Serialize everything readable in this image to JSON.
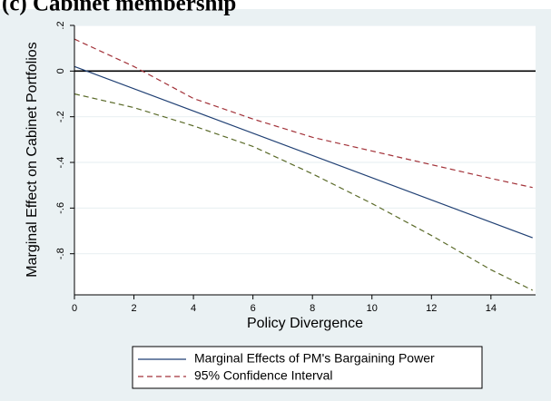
{
  "chart_data": {
    "type": "line",
    "title": "(c) Cabinet membership",
    "xlabel": "Policy Divergence",
    "ylabel": "Marginal Effect on Cabinet Portfolios",
    "xlim": [
      0,
      15.5
    ],
    "ylim": [
      -0.98,
      0.2
    ],
    "x_ticks": [
      0,
      2,
      4,
      6,
      8,
      10,
      12,
      14
    ],
    "x_tick_labels": [
      "0",
      "2",
      "4",
      "6",
      "8",
      "10",
      "12",
      "14"
    ],
    "y_ticks": [
      0.2,
      0,
      -0.2,
      -0.4,
      -0.6,
      -0.8
    ],
    "y_tick_labels": [
      ".2",
      "0",
      "-.2",
      "-.4",
      "-.6",
      "-.8"
    ],
    "reference_line_y": 0,
    "grid": "horizontal",
    "legend_position": "bottom",
    "series": [
      {
        "name": "Marginal Effects of PM's Bargaining Power",
        "color": "#1f3f73",
        "dash": "solid",
        "x": [
          0,
          15.4
        ],
        "y": [
          0.02,
          -0.73
        ]
      },
      {
        "name": "95% Confidence Interval",
        "color": "#a3333a",
        "dash": "dashed",
        "x": [
          0,
          2,
          4,
          6,
          8,
          10,
          12,
          14,
          15.4
        ],
        "y": [
          0.14,
          0.02,
          -0.12,
          -0.21,
          -0.29,
          -0.35,
          -0.41,
          -0.47,
          -0.51
        ]
      },
      {
        "color": "#5b6b2a",
        "dash": "dashed",
        "x": [
          0,
          2,
          4,
          6,
          8,
          10,
          12,
          14,
          15.4
        ],
        "y": [
          -0.1,
          -0.16,
          -0.24,
          -0.33,
          -0.45,
          -0.58,
          -0.72,
          -0.87,
          -0.96
        ]
      }
    ],
    "colors": {
      "outer_background": "#eaf1f3",
      "plot_background": "#ffffff",
      "grid": "#eaf1f3"
    }
  }
}
